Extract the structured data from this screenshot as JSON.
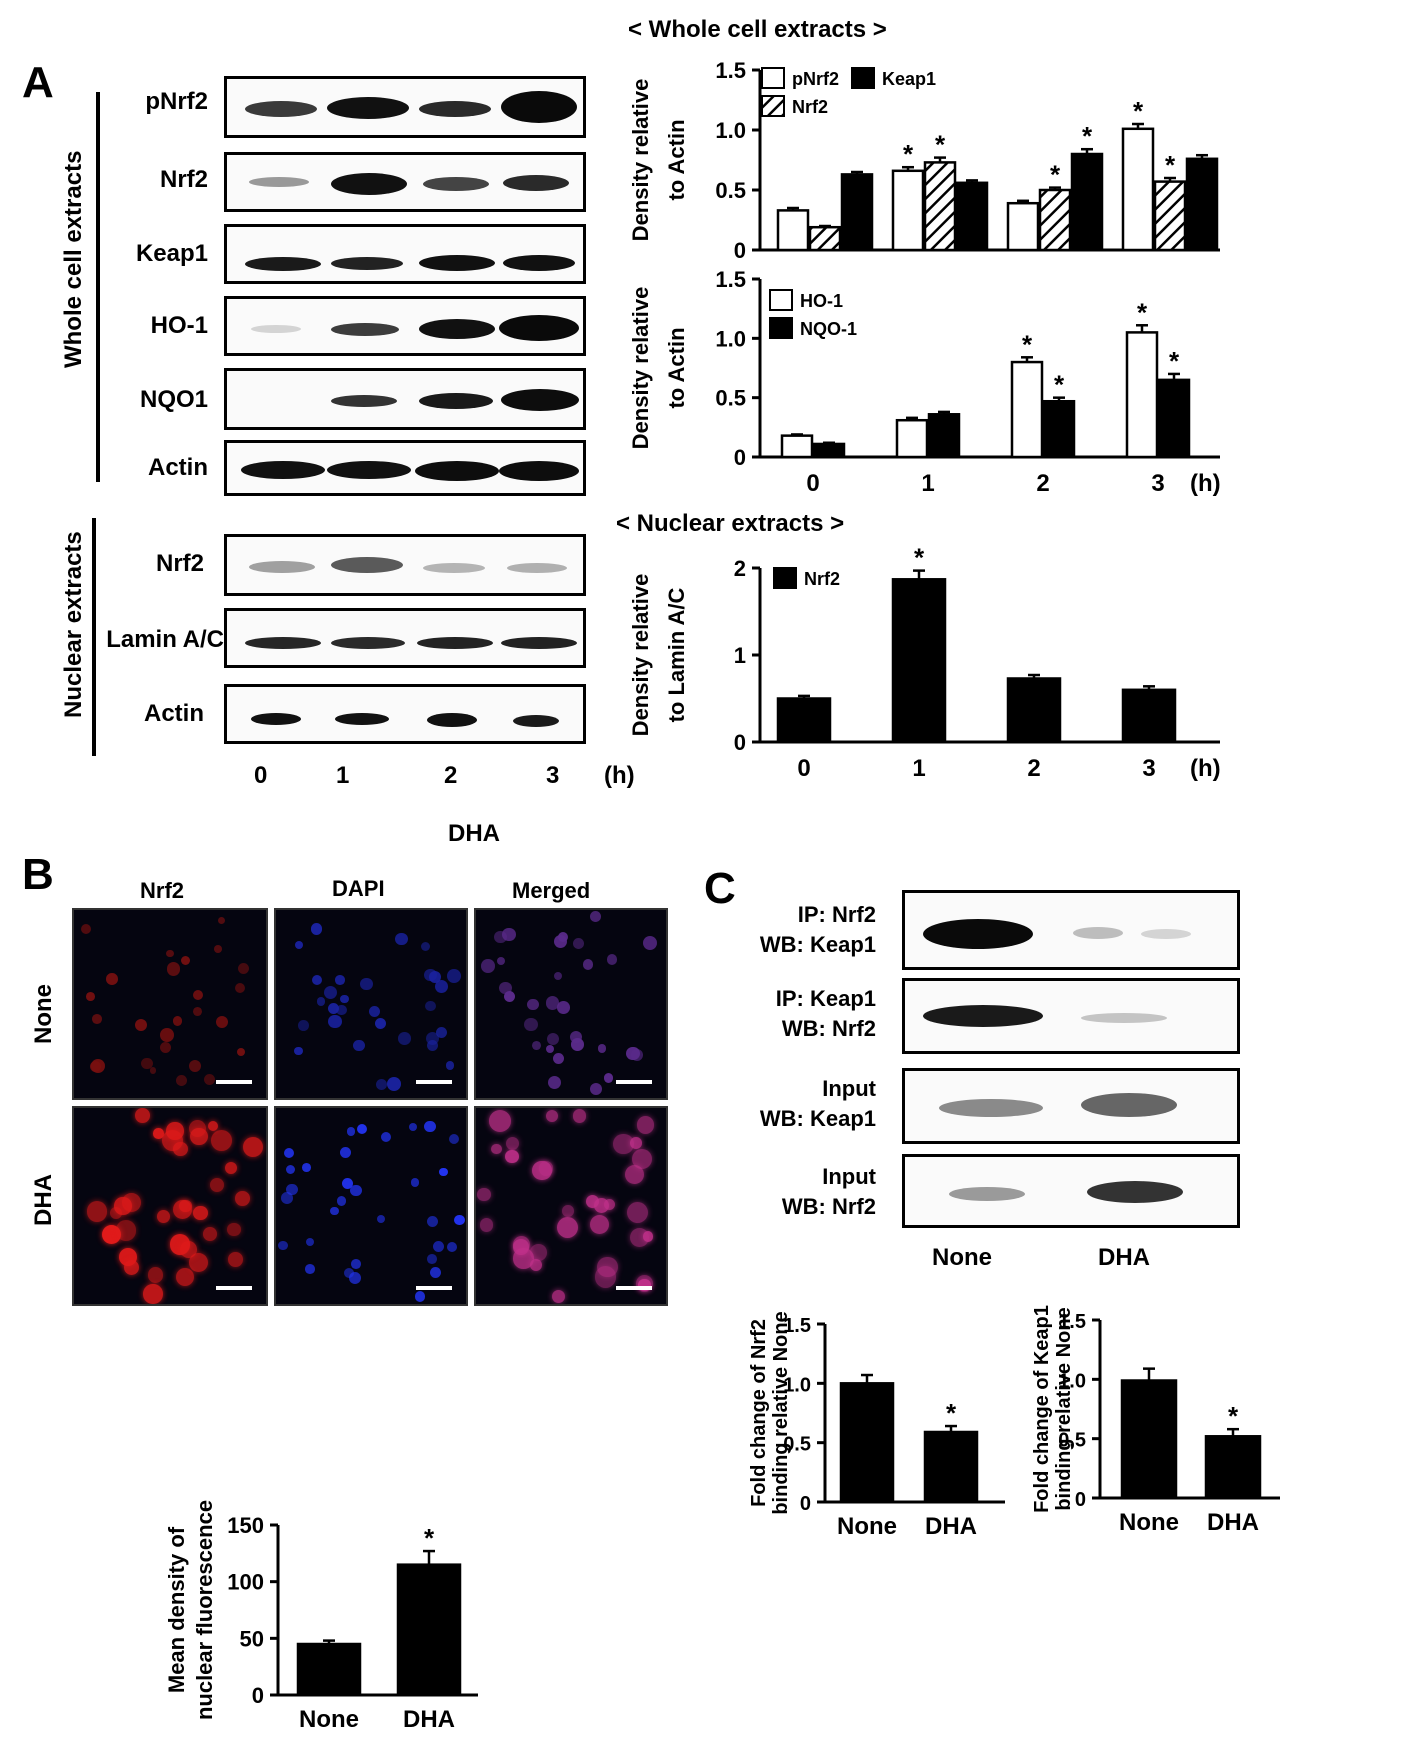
{
  "panelA": {
    "letter": "A",
    "whole_heading": "< Whole cell extracts >",
    "nuclear_heading": "< Nuclear extracts >",
    "group_whole": "Whole cell extracts",
    "group_nuclear": "Nuclear extracts",
    "blot_labels_whole": [
      "pNrf2",
      "Nrf2",
      "Keap1",
      "HO-1",
      "NQO1",
      "Actin"
    ],
    "blot_labels_nuclear": [
      "Nrf2",
      "Lamin A/C",
      "Actin"
    ],
    "lanes": [
      "0",
      "1",
      "2",
      "3"
    ],
    "unit": "(h)",
    "treatment": "DHA"
  },
  "panelB": {
    "letter": "B",
    "columns": [
      "Nrf2",
      "DAPI",
      "Merged"
    ],
    "rows": [
      "None",
      "DHA"
    ]
  },
  "panelC": {
    "letter": "C",
    "blots": [
      {
        "line1": "IP: Nrf2",
        "line2": "WB: Keap1"
      },
      {
        "line1": "IP: Keap1",
        "line2": "WB: Nrf2"
      },
      {
        "line1": "Input",
        "line2": "WB: Keap1"
      },
      {
        "line1": "Input",
        "line2": "WB: Nrf2"
      }
    ],
    "lanes": [
      "None",
      "DHA"
    ]
  },
  "chart_data": [
    {
      "id": "a-top",
      "type": "bar",
      "categories": [
        "0",
        "1",
        "2",
        "3"
      ],
      "series": [
        {
          "name": "pNrf2",
          "values": [
            0.33,
            0.66,
            0.39,
            1.01
          ],
          "errors": [
            0.02,
            0.03,
            0.02,
            0.04
          ],
          "sig": [
            false,
            true,
            false,
            true
          ],
          "fill": "white"
        },
        {
          "name": "Nrf2",
          "values": [
            0.19,
            0.73,
            0.5,
            0.57
          ],
          "errors": [
            0.01,
            0.04,
            0.02,
            0.03
          ],
          "sig": [
            false,
            true,
            true,
            true
          ],
          "fill": "hatch"
        },
        {
          "name": "Keap1",
          "values": [
            0.63,
            0.56,
            0.8,
            0.76
          ],
          "errors": [
            0.02,
            0.02,
            0.04,
            0.03
          ],
          "sig": [
            false,
            false,
            true,
            false
          ],
          "fill": "black"
        }
      ],
      "ylabel": "Density relative to Actin",
      "yticks": [
        "0",
        "0.5",
        "1.0",
        "1.5"
      ],
      "ylim": [
        0,
        1.5
      ],
      "legend": "top-left"
    },
    {
      "id": "a-mid",
      "type": "bar",
      "categories": [
        "0",
        "1",
        "2",
        "3"
      ],
      "series": [
        {
          "name": "HO-1",
          "values": [
            0.18,
            0.31,
            0.8,
            1.05
          ],
          "errors": [
            0.01,
            0.02,
            0.04,
            0.06
          ],
          "sig": [
            false,
            false,
            true,
            true
          ],
          "fill": "white"
        },
        {
          "name": "NQO-1",
          "values": [
            0.11,
            0.36,
            0.47,
            0.65
          ],
          "errors": [
            0.01,
            0.02,
            0.03,
            0.05
          ],
          "sig": [
            false,
            false,
            true,
            true
          ],
          "fill": "black"
        }
      ],
      "ylabel": "Density relative to Actin",
      "yticks": [
        "0",
        "0.5",
        "1.0",
        "1.5"
      ],
      "ylim": [
        0,
        1.5
      ],
      "xlabel": "(h)",
      "legend": "top-left"
    },
    {
      "id": "a-bottom",
      "type": "bar",
      "categories": [
        "0",
        "1",
        "2",
        "3"
      ],
      "series": [
        {
          "name": "Nrf2",
          "values": [
            0.5,
            1.87,
            0.73,
            0.6
          ],
          "errors": [
            0.03,
            0.1,
            0.04,
            0.04
          ],
          "sig": [
            false,
            true,
            false,
            false
          ],
          "fill": "black"
        }
      ],
      "ylabel": "Density relative to Lamin A/C",
      "yticks": [
        "0",
        "1",
        "2"
      ],
      "ylim": [
        0,
        2
      ],
      "xlabel": "(h)",
      "legend": "top-left"
    },
    {
      "id": "b-bottom",
      "type": "bar",
      "categories": [
        "None",
        "DHA"
      ],
      "series": [
        {
          "name": "",
          "values": [
            45,
            115
          ],
          "errors": [
            3,
            12
          ],
          "sig": [
            false,
            true
          ],
          "fill": "black"
        }
      ],
      "ylabel": "Mean density of nuclear fluorescence",
      "yticks": [
        "0",
        "50",
        "100",
        "150"
      ],
      "ylim": [
        0,
        150
      ]
    },
    {
      "id": "c-left",
      "type": "bar",
      "categories": [
        "None",
        "DHA"
      ],
      "series": [
        {
          "name": "",
          "values": [
            1.0,
            0.59
          ],
          "errors": [
            0.07,
            0.05
          ],
          "sig": [
            false,
            true
          ],
          "fill": "black"
        }
      ],
      "ylabel": "Fold change of Nrf2 binding relative None",
      "yticks": [
        "0",
        "0.5",
        "1.0",
        "1.5"
      ],
      "ylim": [
        0,
        1.5
      ]
    },
    {
      "id": "c-right",
      "type": "bar",
      "categories": [
        "None",
        "DHA"
      ],
      "series": [
        {
          "name": "",
          "values": [
            0.99,
            0.52
          ],
          "errors": [
            0.1,
            0.06
          ],
          "sig": [
            false,
            true
          ],
          "fill": "black"
        }
      ],
      "ylabel": "Fold change of Keap1 binding relative None",
      "yticks": [
        "0",
        "0.5",
        "1.0",
        "1.5"
      ],
      "ylim": [
        0,
        1.5
      ]
    }
  ]
}
